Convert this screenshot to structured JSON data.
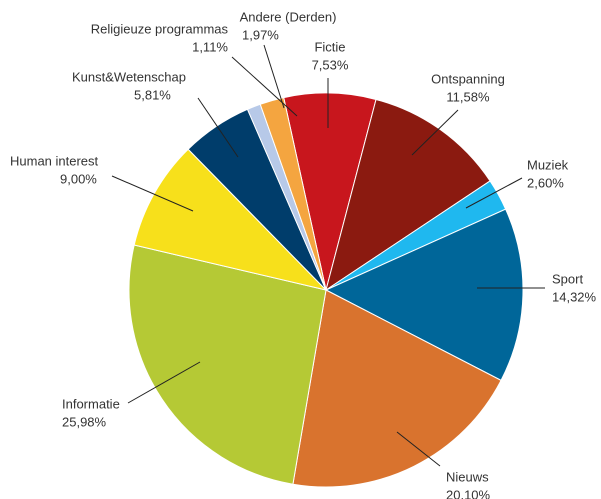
{
  "chart_data": {
    "type": "pie",
    "categories": [
      "Fictie",
      "Ontspanning",
      "Muziek",
      "Sport",
      "Nieuws",
      "Informatie",
      "Human interest",
      "Kunst&Wetenschap",
      "Religieuze programmas",
      "Andere (Derden)"
    ],
    "values": [
      7.53,
      11.58,
      2.6,
      14.32,
      20.1,
      25.98,
      9.0,
      5.81,
      1.11,
      1.97
    ],
    "value_labels": [
      "7,53%",
      "11,58%",
      "2,60%",
      "14,32%",
      "20.10%",
      "25,98%",
      "9,00%",
      "5,81%",
      "1,11%",
      "1,97%"
    ],
    "colors": [
      "#c8161d",
      "#8b1a10",
      "#1fb8ef",
      "#006699",
      "#d9732e",
      "#b5c935",
      "#f7e01b",
      "#003d6b",
      "#b7c9e8",
      "#f4a540"
    ]
  }
}
